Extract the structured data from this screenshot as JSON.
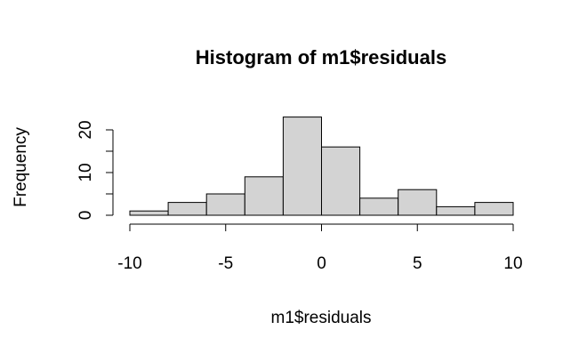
{
  "chart_data": {
    "type": "histogram",
    "title": "Histogram of m1$residuals",
    "xlabel": "m1$residuals",
    "ylabel": "Frequency",
    "bins": [
      -10,
      -8,
      -6,
      -4,
      -2,
      0,
      2,
      4,
      6,
      8,
      10
    ],
    "values": [
      1,
      3,
      5,
      9,
      23,
      16,
      4,
      6,
      2,
      3
    ],
    "color": "#d3d3d3",
    "xlim": [
      -10,
      10
    ],
    "xticks": [
      -10,
      -5,
      0,
      5,
      10
    ],
    "ylim": [
      0,
      24
    ],
    "yticks": [
      0,
      5,
      10,
      15,
      20
    ],
    "ytick_label_every": 2
  }
}
